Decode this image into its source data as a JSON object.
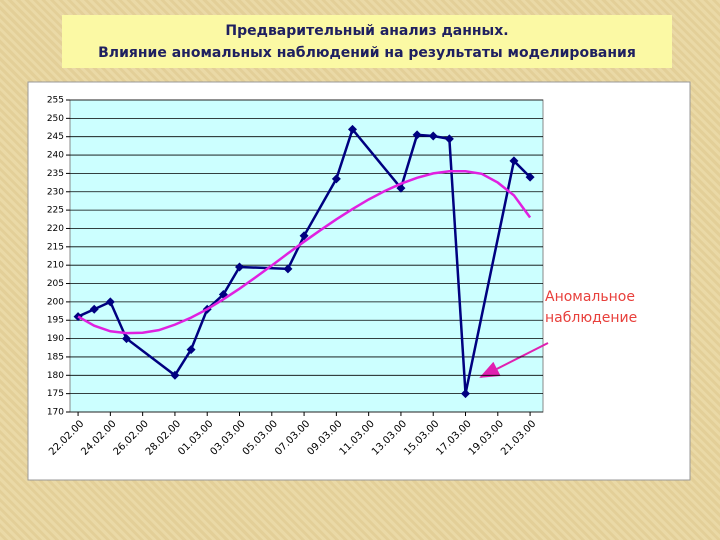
{
  "chart_data": {
    "type": "line",
    "title": "Предварительный анализ данных.",
    "subtitle": "Влияние аномальных наблюдений на результаты моделирования",
    "xlim": [
      -0.5,
      28.8
    ],
    "xticks": [
      {
        "value": 0,
        "label": "22.02.00"
      },
      {
        "value": 2,
        "label": "24.02.00"
      },
      {
        "value": 4,
        "label": "26.02.00"
      },
      {
        "value": 6,
        "label": "28.02.00"
      },
      {
        "value": 8,
        "label": "01.03.00"
      },
      {
        "value": 10,
        "label": "03.03.00"
      },
      {
        "value": 12,
        "label": "05.03.00"
      },
      {
        "value": 14,
        "label": "07.03.00"
      },
      {
        "value": 16,
        "label": "09.03.00"
      },
      {
        "value": 18,
        "label": "11.03.00"
      },
      {
        "value": 20,
        "label": "13.03.00"
      },
      {
        "value": 22,
        "label": "15.03.00"
      },
      {
        "value": 24,
        "label": "17.03.00"
      },
      {
        "value": 26,
        "label": "19.03.00"
      },
      {
        "value": 28,
        "label": "21.03.00"
      }
    ],
    "ylim": [
      170,
      255
    ],
    "yticks": [
      170,
      175,
      180,
      185,
      190,
      195,
      200,
      205,
      210,
      215,
      220,
      225,
      230,
      235,
      240,
      245,
      250,
      255
    ],
    "grid": true,
    "series": [
      {
        "color": "#000080",
        "markers": true,
        "x": [
          0,
          1,
          2,
          3,
          6,
          7,
          8,
          9,
          10,
          13,
          14,
          16,
          17,
          20,
          21,
          22,
          23,
          24,
          27,
          28
        ],
        "values": [
          196,
          198,
          200,
          190,
          180,
          187,
          198,
          202,
          209.5,
          209,
          218,
          233.5,
          247,
          231,
          245.5,
          245.2,
          244.4,
          175,
          238.4,
          234
        ]
      },
      {
        "color": "#e020e0",
        "markers": false,
        "x": [
          0,
          1,
          2,
          3,
          4,
          5,
          6,
          7,
          8,
          9,
          10,
          11,
          12,
          13,
          14,
          15,
          16,
          17,
          18,
          19,
          20,
          21,
          22,
          23,
          24,
          25,
          26,
          27,
          28
        ],
        "values": [
          196,
          193.5,
          192,
          191.5,
          191.6,
          192.3,
          193.8,
          195.7,
          198,
          200.7,
          203.6,
          206.7,
          209.9,
          213.2,
          216.4,
          219.5,
          222.5,
          225.3,
          227.9,
          230.2,
          232.2,
          233.8,
          235,
          235.6,
          235.6,
          234.9,
          232.5,
          229,
          223
        ]
      }
    ],
    "annotation": [
      "Аномальное",
      "наблюдение"
    ],
    "annotation_color": "#e8403c"
  }
}
